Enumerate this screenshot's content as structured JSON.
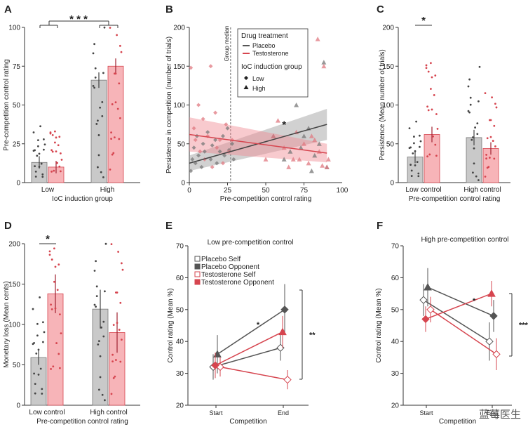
{
  "figure": {
    "watermark": "蓝莓医生"
  },
  "colors": {
    "placebo": "#888888",
    "placebo_fill": "#c9c9c9",
    "testo": "#d6454f",
    "testo_fill": "#f7b4b8",
    "axis": "#333333"
  },
  "chart_data": [
    {
      "panel": "A",
      "type": "bar",
      "ylabel": "Pre-competition control rating",
      "xlabel": "IoC induction group",
      "ylim": [
        0,
        100
      ],
      "yticks": [
        0,
        25,
        50,
        75,
        100
      ],
      "categories": [
        "Low",
        "High"
      ],
      "series": [
        {
          "name": "Placebo",
          "values": [
            13,
            66
          ],
          "err": [
            4,
            5
          ]
        },
        {
          "name": "Testosterone",
          "values": [
            10,
            75
          ],
          "err": [
            4,
            5
          ]
        }
      ],
      "significance": [
        {
          "label": "* * *",
          "between": [
            "Low",
            "High"
          ]
        }
      ]
    },
    {
      "panel": "B",
      "type": "scatter",
      "ylabel": "Persistence in competition (number of trials)",
      "xlabel": "Pre-competition control rating",
      "xlim": [
        0,
        100
      ],
      "ylim": [
        0,
        200
      ],
      "xticks": [
        0,
        25,
        50,
        75,
        100
      ],
      "yticks": [
        0,
        50,
        100,
        150,
        200
      ],
      "median_line": {
        "x": 27,
        "label": "Group median"
      },
      "legend": {
        "title1": "Drug treatment",
        "items1": [
          "Placebo",
          "Testosterone"
        ],
        "title2": "IoC induction group",
        "items2": [
          "Low",
          "High"
        ]
      },
      "series": [
        {
          "name": "Placebo fit",
          "x": [
            0,
            90
          ],
          "y": [
            25,
            75
          ]
        },
        {
          "name": "Testosterone fit",
          "x": [
            0,
            90
          ],
          "y": [
            62,
            38
          ]
        }
      ],
      "points": {
        "placebo_low": [
          [
            1,
            15
          ],
          [
            2,
            30
          ],
          [
            3,
            45
          ],
          [
            4,
            25
          ],
          [
            5,
            60
          ],
          [
            6,
            35
          ],
          [
            8,
            20
          ],
          [
            9,
            50
          ],
          [
            10,
            40
          ],
          [
            12,
            65
          ],
          [
            14,
            30
          ],
          [
            15,
            48
          ],
          [
            17,
            55
          ],
          [
            18,
            25
          ],
          [
            20,
            40
          ],
          [
            22,
            60
          ],
          [
            23,
            35
          ],
          [
            25,
            70
          ],
          [
            26,
            42
          ],
          [
            28,
            50
          ],
          [
            29,
            30
          ]
        ],
        "testo_low": [
          [
            1,
            148
          ],
          [
            3,
            70
          ],
          [
            4,
            55
          ],
          [
            6,
            100
          ],
          [
            7,
            40
          ],
          [
            9,
            82
          ],
          [
            10,
            30
          ],
          [
            12,
            60
          ],
          [
            14,
            150
          ],
          [
            15,
            20
          ],
          [
            17,
            90
          ],
          [
            18,
            45
          ],
          [
            20,
            55
          ],
          [
            22,
            25
          ],
          [
            24,
            75
          ],
          [
            26,
            40
          ],
          [
            28,
            55
          ]
        ],
        "placebo_high": [
          [
            55,
            60
          ],
          [
            62,
            30
          ],
          [
            66,
            40
          ],
          [
            70,
            100
          ],
          [
            72,
            140
          ],
          [
            75,
            60
          ],
          [
            78,
            70
          ],
          [
            80,
            15
          ],
          [
            82,
            35
          ],
          [
            85,
            50
          ],
          [
            88,
            155
          ],
          [
            90,
            20
          ],
          [
            73,
            45
          ]
        ],
        "testo_high": [
          [
            50,
            30
          ],
          [
            55,
            60
          ],
          [
            58,
            80
          ],
          [
            62,
            45
          ],
          [
            65,
            20
          ],
          [
            68,
            30
          ],
          [
            72,
            30
          ],
          [
            75,
            50
          ],
          [
            78,
            25
          ],
          [
            80,
            60
          ],
          [
            82,
            55
          ],
          [
            84,
            185
          ],
          [
            85,
            40
          ],
          [
            87,
            22
          ],
          [
            88,
            150
          ],
          [
            90,
            20
          ],
          [
            91,
            30
          ],
          [
            70,
            65
          ]
        ]
      },
      "annotation": "*"
    },
    {
      "panel": "C",
      "type": "bar",
      "ylabel": "Persistence (Mean number of trials)",
      "xlabel": "Pre-competition control rating",
      "ylim": [
        0,
        200
      ],
      "yticks": [
        0,
        50,
        100,
        150,
        200
      ],
      "categories": [
        "Low",
        "High"
      ],
      "cat_labels": [
        "Low  control",
        "High  control"
      ],
      "series": [
        {
          "name": "Placebo",
          "values": [
            33,
            58
          ],
          "err": [
            8,
            10
          ]
        },
        {
          "name": "Testosterone",
          "values": [
            62,
            44
          ],
          "err": [
            10,
            8
          ]
        }
      ],
      "significance": [
        {
          "label": "*",
          "between": [
            "Low-Placebo",
            "Low-Testosterone"
          ]
        }
      ]
    },
    {
      "panel": "D",
      "type": "bar",
      "ylabel": "Monetary loss (Mean cents)",
      "xlabel": "Pre-competition control rating",
      "ylim": [
        0,
        200
      ],
      "yticks": [
        0,
        50,
        100,
        150,
        200
      ],
      "categories": [
        "Low",
        "High"
      ],
      "cat_labels": [
        "Low  control",
        "High  control"
      ],
      "series": [
        {
          "name": "Placebo",
          "values": [
            59,
            119
          ],
          "err": [
            9,
            24
          ]
        },
        {
          "name": "Testosterone",
          "values": [
            138,
            90
          ],
          "err": [
            24,
            25
          ]
        }
      ],
      "significance": [
        {
          "label": "*",
          "between": [
            "Low-Placebo",
            "Low-Testosterone"
          ]
        }
      ]
    },
    {
      "panel": "E",
      "type": "line",
      "title": "Low pre-competition control",
      "ylabel": "Control rating (Mean %)",
      "xlabel": "Competition",
      "categories": [
        "Start",
        "End"
      ],
      "ylim": [
        20,
        70
      ],
      "yticks": [
        20,
        30,
        40,
        50,
        60,
        70
      ],
      "legend": [
        "Placebo Self",
        "Placebo Opponent",
        "Testosterone Self",
        "Testosterone Opponent"
      ],
      "series": [
        {
          "name": "Placebo Self",
          "values": [
            32,
            38
          ],
          "err": [
            4,
            4
          ]
        },
        {
          "name": "Placebo Opponent",
          "values": [
            36,
            50
          ],
          "err": [
            6,
            8
          ]
        },
        {
          "name": "Testosterone Self",
          "values": [
            32,
            28
          ],
          "err": [
            3,
            3
          ]
        },
        {
          "name": "Testosterone Opponent",
          "values": [
            32.5,
            43
          ],
          "err": [
            4,
            5
          ]
        }
      ],
      "annotations": [
        "*",
        "**"
      ]
    },
    {
      "panel": "F",
      "type": "line",
      "title": "High pre-competition control",
      "ylabel": "Control rating (Mean %)",
      "xlabel": "Competition",
      "categories": [
        "Start",
        "End"
      ],
      "ylim": [
        20,
        70
      ],
      "yticks": [
        20,
        30,
        40,
        50,
        60,
        70
      ],
      "series": [
        {
          "name": "Placebo Self",
          "values": [
            53,
            40
          ],
          "err": [
            5,
            6
          ]
        },
        {
          "name": "Placebo Opponent",
          "values": [
            57,
            48
          ],
          "err": [
            6,
            5
          ]
        },
        {
          "name": "Testosterone Self",
          "values": [
            50,
            36
          ],
          "err": [
            4,
            5
          ]
        },
        {
          "name": "Testosterone Opponent",
          "values": [
            47,
            55
          ],
          "err": [
            4,
            4
          ]
        }
      ],
      "annotations": [
        "*",
        "***"
      ]
    }
  ]
}
